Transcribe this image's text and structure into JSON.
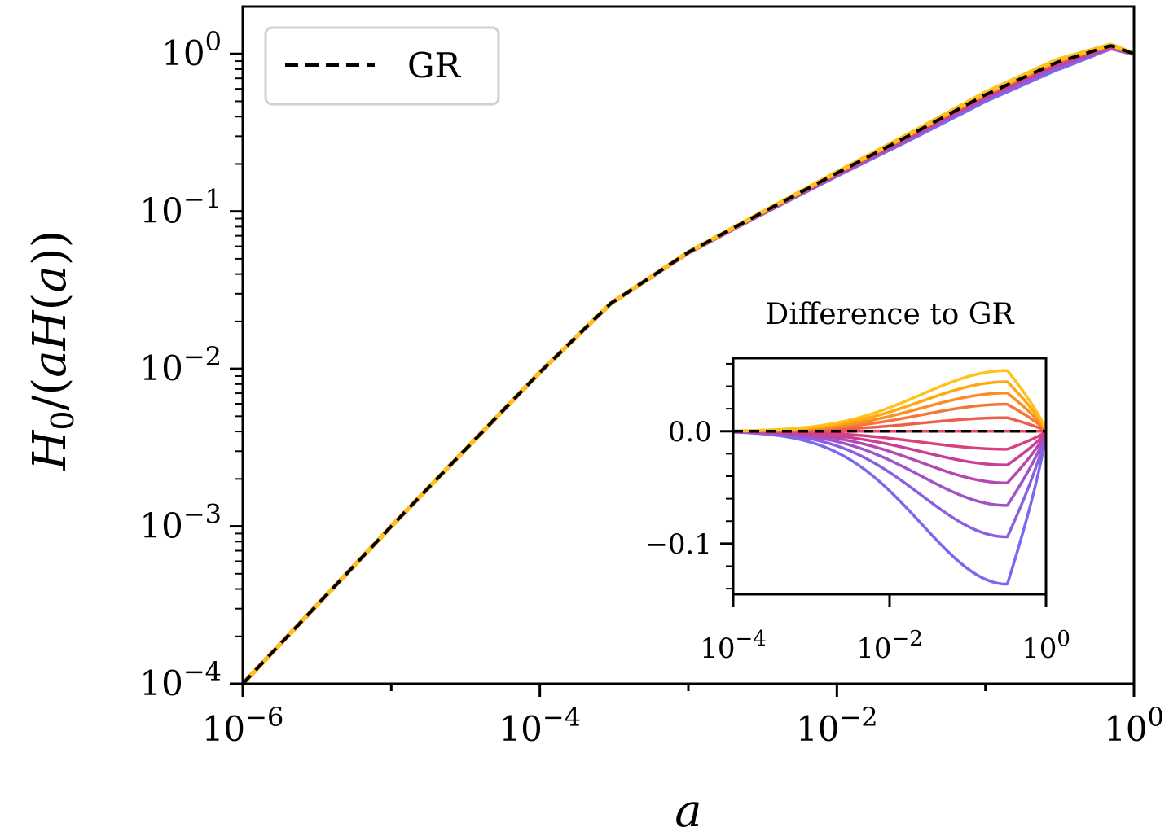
{
  "chart_data": [
    {
      "type": "line",
      "xlabel": "a",
      "ylabel": "H0/(aH(a))",
      "xscale": "log",
      "yscale": "log",
      "xlim": [
        1e-06,
        1
      ],
      "ylim": [
        0.0001,
        2
      ],
      "x_ticks": [
        {
          "base": "10",
          "exp": "−6",
          "value": 1e-06
        },
        {
          "base": "10",
          "exp": "−4",
          "value": 0.0001
        },
        {
          "base": "10",
          "exp": "−2",
          "value": 0.01
        },
        {
          "base": "10",
          "exp": "0",
          "value": 1
        }
      ],
      "y_ticks": [
        {
          "base": "10",
          "exp": "−4",
          "value": 0.0001
        },
        {
          "base": "10",
          "exp": "−3",
          "value": 0.001
        },
        {
          "base": "10",
          "exp": "−2",
          "value": 0.01
        },
        {
          "base": "10",
          "exp": "−1",
          "value": 0.1
        },
        {
          "base": "10",
          "exp": "0",
          "value": 1
        }
      ],
      "legend": {
        "position": "top-left",
        "entries": [
          {
            "label": "GR",
            "style": "dashed",
            "color": "#000000"
          }
        ]
      },
      "gr_curve": {
        "x": [
          1e-06,
          1e-05,
          0.0001,
          0.0003,
          0.001,
          0.003,
          0.01,
          0.03,
          0.1,
          0.3,
          0.7,
          1
        ],
        "y": [
          0.0001,
          0.001,
          0.0095,
          0.026,
          0.055,
          0.096,
          0.175,
          0.3,
          0.55,
          0.88,
          1.13,
          1.0
        ]
      },
      "variant_colors": [
        "#7b68ee",
        "#8c5fe0",
        "#a052c8",
        "#b548b0",
        "#c83f98",
        "#d8407e",
        "#e54a66",
        "#ef5d4c",
        "#f67537",
        "#fb8e22",
        "#fea812",
        "#ffc21a"
      ],
      "gr_color": "#000000"
    },
    {
      "type": "line",
      "title": "Difference to GR",
      "xscale": "log",
      "xlim": [
        0.0001,
        1
      ],
      "ylim": [
        -0.145,
        0.065
      ],
      "x_ticks": [
        {
          "base": "10",
          "exp": "−4",
          "value": 0.0001
        },
        {
          "base": "10",
          "exp": "−2",
          "value": 0.01
        },
        {
          "base": "10",
          "exp": "0",
          "value": 1
        }
      ],
      "y_ticks": [
        {
          "label": "0.0",
          "value": 0.0
        },
        {
          "label": "−0.1",
          "value": -0.1
        }
      ],
      "peak_a": 0.32,
      "peak_amplitudes": [
        -0.136,
        -0.094,
        -0.066,
        -0.046,
        -0.03,
        -0.016,
        0.0,
        0.012,
        0.024,
        0.034,
        0.044,
        0.054
      ]
    }
  ]
}
